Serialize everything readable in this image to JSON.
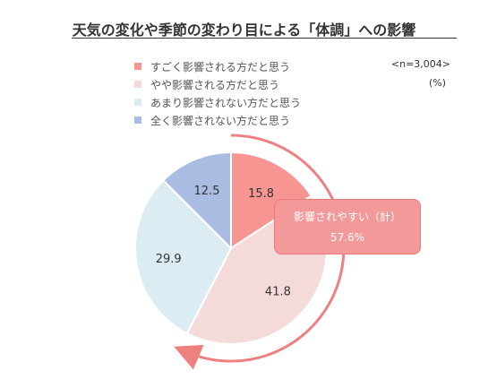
{
  "title": "天気の変化や季節の変わり目による「体調」への影響",
  "sample_note": "<n=3,004>",
  "unit": "(%)",
  "colors": {
    "accent": "#ee8080",
    "callout_fill": "#f4999a"
  },
  "callout": {
    "label": "影響されやすい（計）",
    "value": "57.6%"
  },
  "chart_data": {
    "type": "pie",
    "title": "天気の変化や季節の変わり目による「体調」への影響",
    "unit": "%",
    "categories": [
      "すごく影響される方だと思う",
      "やや影響される方だと思う",
      "あまり影響されない方だと思う",
      "全く影響されない方だと思う"
    ],
    "values": [
      15.8,
      41.8,
      29.9,
      12.5
    ],
    "value_labels": [
      "15.8",
      "41.8",
      "29.9",
      "12.5"
    ],
    "colors": [
      "#f79593",
      "#f5dada",
      "#dcecf3",
      "#a9bde2"
    ],
    "legend_position": "top-left",
    "annotation": {
      "text": "影響されやすい（計）",
      "value": "57.6%"
    }
  }
}
